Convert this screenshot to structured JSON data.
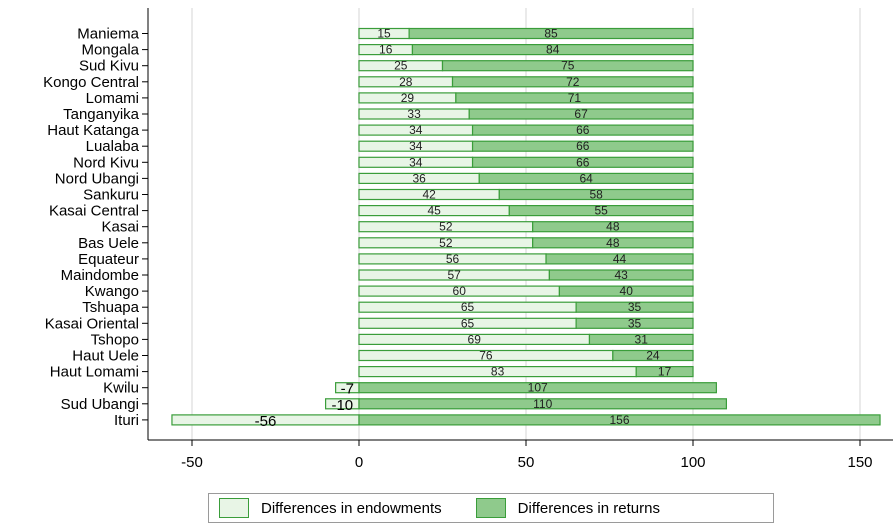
{
  "chart_data": {
    "type": "bar",
    "orientation": "horizontal",
    "stacked": true,
    "categories": [
      "Maniema",
      "Mongala",
      "Sud Kivu",
      "Kongo Central",
      "Lomami",
      "Tanganyika",
      "Haut Katanga",
      "Lualaba",
      "Nord Kivu",
      "Nord Ubangi",
      "Sankuru",
      "Kasai Central",
      "Kasai",
      "Bas Uele",
      "Equateur",
      "Maindombe",
      "Kwango",
      "Tshuapa",
      "Kasai Oriental",
      "Tshopo",
      "Haut Uele",
      "Haut Lomami",
      "Kwilu",
      "Sud Ubangi",
      "Ituri"
    ],
    "series": [
      {
        "name": "Differences in endowments",
        "color": "#e8f5e6",
        "values": [
          15,
          16,
          25,
          28,
          29,
          33,
          34,
          34,
          34,
          36,
          42,
          45,
          52,
          52,
          56,
          57,
          60,
          65,
          65,
          69,
          76,
          83,
          -7,
          -10,
          -56
        ]
      },
      {
        "name": "Differences in returns",
        "color": "#8fca8c",
        "values": [
          85,
          84,
          75,
          72,
          71,
          67,
          66,
          66,
          66,
          64,
          58,
          55,
          48,
          48,
          44,
          43,
          40,
          35,
          35,
          31,
          24,
          17,
          107,
          110,
          156
        ]
      }
    ],
    "xlim": [
      -60,
      160
    ],
    "xticks": [
      -50,
      0,
      50,
      100,
      150
    ],
    "grid": true,
    "legend_position": "bottom",
    "border_color": "#3a9d3a"
  },
  "legend": {
    "items": [
      {
        "label": "Differences in endowments"
      },
      {
        "label": "Differences in returns"
      }
    ]
  }
}
